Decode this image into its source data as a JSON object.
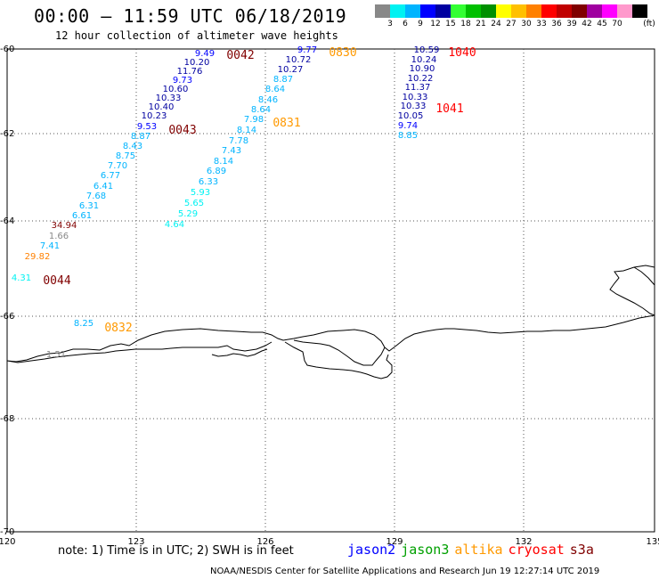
{
  "header": {
    "title": "00:00 – 11:59 UTC 06/18/2019",
    "subtitle": "12 hour collection of altimeter wave heights"
  },
  "colorbar": {
    "unit": "(ft)",
    "steps": [
      {
        "label": "",
        "color": "#888888"
      },
      {
        "label": "3",
        "color": "#00f2f2"
      },
      {
        "label": "6",
        "color": "#00b4ff"
      },
      {
        "label": "9",
        "color": "#0000ff"
      },
      {
        "label": "12",
        "color": "#0000a0"
      },
      {
        "label": "15",
        "color": "#33ff33"
      },
      {
        "label": "18",
        "color": "#00c000"
      },
      {
        "label": "21",
        "color": "#009000"
      },
      {
        "label": "24",
        "color": "#ffff00"
      },
      {
        "label": "27",
        "color": "#ffc000"
      },
      {
        "label": "30",
        "color": "#ff8000"
      },
      {
        "label": "33",
        "color": "#ff0000"
      },
      {
        "label": "36",
        "color": "#c00000"
      },
      {
        "label": "39",
        "color": "#800000"
      },
      {
        "label": "42",
        "color": "#a000a0"
      },
      {
        "label": "45",
        "color": "#ff00ff"
      },
      {
        "label": "70",
        "color": "#ff99cc"
      },
      {
        "label": "",
        "color": "#000000"
      }
    ]
  },
  "map": {
    "lon_range": [
      120,
      135
    ],
    "lat_range": [
      -70,
      -60
    ],
    "lon_ticks": [
      "120",
      "123",
      "126",
      "129",
      "132",
      "135"
    ],
    "lat_ticks": [
      "-60",
      "-62",
      "-64",
      "-66",
      "-68",
      "-70"
    ],
    "grid": "dotted"
  },
  "pass_labels": [
    {
      "text": "0042",
      "color": "#800000"
    },
    {
      "text": "0830",
      "color": "#ff9900"
    },
    {
      "text": "1040",
      "color": "#ff0000"
    },
    {
      "text": "1041",
      "color": "#ff0000"
    },
    {
      "text": "0043",
      "color": "#800000"
    },
    {
      "text": "0831",
      "color": "#ff9900"
    },
    {
      "text": "0044",
      "color": "#800000"
    },
    {
      "text": "0832",
      "color": "#ff9900"
    }
  ],
  "wave_heights": [
    {
      "v": "9.49",
      "c": "#0000ff"
    },
    {
      "v": "10.20",
      "c": "#0000a0"
    },
    {
      "v": "11.76",
      "c": "#0000a0"
    },
    {
      "v": "9.73",
      "c": "#0000ff"
    },
    {
      "v": "10.60",
      "c": "#0000a0"
    },
    {
      "v": "10.33",
      "c": "#0000a0"
    },
    {
      "v": "10.40",
      "c": "#0000a0"
    },
    {
      "v": "10.23",
      "c": "#0000a0"
    },
    {
      "v": "9.53",
      "c": "#0000ff"
    },
    {
      "v": "8.87",
      "c": "#00b4ff"
    },
    {
      "v": "8.43",
      "c": "#00b4ff"
    },
    {
      "v": "8.75",
      "c": "#00b4ff"
    },
    {
      "v": "7.70",
      "c": "#00b4ff"
    },
    {
      "v": "6.77",
      "c": "#00b4ff"
    },
    {
      "v": "6.41",
      "c": "#00b4ff"
    },
    {
      "v": "7.68",
      "c": "#00b4ff"
    },
    {
      "v": "6.31",
      "c": "#00b4ff"
    },
    {
      "v": "6.61",
      "c": "#00b4ff"
    },
    {
      "v": "34.94",
      "c": "#800000"
    },
    {
      "v": "1.66",
      "c": "#888888"
    },
    {
      "v": "7.41",
      "c": "#00b4ff"
    },
    {
      "v": "29.82",
      "c": "#ff8000"
    },
    {
      "v": "4.31",
      "c": "#00f2f2"
    },
    {
      "v": "9.77",
      "c": "#0000ff"
    },
    {
      "v": "10.72",
      "c": "#0000a0"
    },
    {
      "v": "10.27",
      "c": "#0000a0"
    },
    {
      "v": "8.87",
      "c": "#00b4ff"
    },
    {
      "v": "8.64",
      "c": "#00b4ff"
    },
    {
      "v": "8.46",
      "c": "#00b4ff"
    },
    {
      "v": "8.64",
      "c": "#00b4ff"
    },
    {
      "v": "7.98",
      "c": "#00b4ff"
    },
    {
      "v": "8.14",
      "c": "#00b4ff"
    },
    {
      "v": "7.78",
      "c": "#00b4ff"
    },
    {
      "v": "7.43",
      "c": "#00b4ff"
    },
    {
      "v": "8.14",
      "c": "#00b4ff"
    },
    {
      "v": "6.89",
      "c": "#00b4ff"
    },
    {
      "v": "6.33",
      "c": "#00b4ff"
    },
    {
      "v": "5.93",
      "c": "#00f2f2"
    },
    {
      "v": "5.65",
      "c": "#00f2f2"
    },
    {
      "v": "5.29",
      "c": "#00f2f2"
    },
    {
      "v": "4.64",
      "c": "#00f2f2"
    },
    {
      "v": "8.25",
      "c": "#00b4ff"
    },
    {
      "v": "10.59",
      "c": "#0000a0"
    },
    {
      "v": "10.24",
      "c": "#0000a0"
    },
    {
      "v": "10.90",
      "c": "#0000a0"
    },
    {
      "v": "10.22",
      "c": "#0000a0"
    },
    {
      "v": "11.37",
      "c": "#0000a0"
    },
    {
      "v": "10.33",
      "c": "#0000a0"
    },
    {
      "v": "10.33",
      "c": "#0000a0"
    },
    {
      "v": "10.05",
      "c": "#0000a0"
    },
    {
      "v": "9.74",
      "c": "#0000ff"
    },
    {
      "v": "8.85",
      "c": "#00b4ff"
    },
    {
      "v": "1.51",
      "c": "#888888"
    }
  ],
  "note": "note: 1) Time is in UTC; 2) SWH is in feet",
  "legend": [
    {
      "label": "jason2",
      "color": "#0000ff"
    },
    {
      "label": "jason3",
      "color": "#00a000"
    },
    {
      "label": "altika",
      "color": "#ff9900"
    },
    {
      "label": "cryosat",
      "color": "#ff0000"
    },
    {
      "label": "s3a",
      "color": "#800000"
    }
  ],
  "footer": "NOAA/NESDIS Center for Satellite Applications and Research   Jun 19 12:27:14 UTC 2019"
}
